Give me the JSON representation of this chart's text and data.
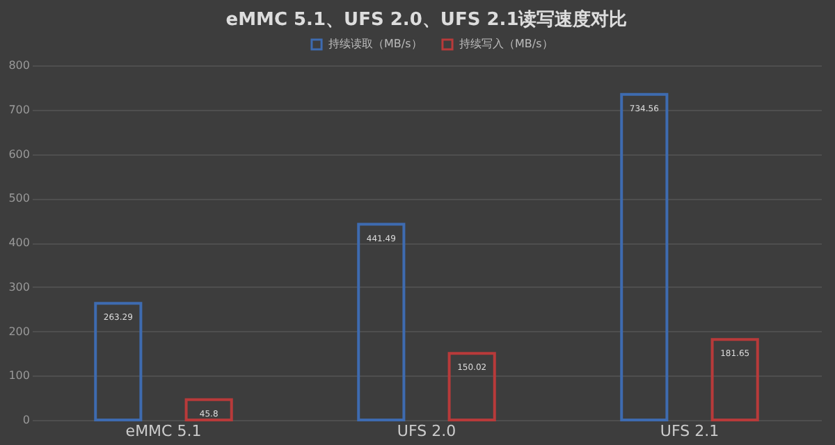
{
  "chart_data": {
    "type": "bar",
    "title": "eMMC 5.1、UFS 2.0、UFS 2.1读写速度对比",
    "categories": [
      "eMMC 5.1",
      "UFS 2.0",
      "UFS 2.1"
    ],
    "series": [
      {
        "name": "持续读取（MB/s）",
        "color": "#3e6bb0",
        "values": [
          263.29,
          441.49,
          734.56
        ]
      },
      {
        "name": "持续写入（MB/s）",
        "color": "#b83a3a",
        "values": [
          45.8,
          150.02,
          181.65
        ]
      }
    ],
    "ylim": [
      0,
      800
    ],
    "yticks": [
      0,
      100,
      200,
      300,
      400,
      500,
      600,
      700,
      800
    ],
    "grid": "y",
    "legend": "top",
    "data_labels": true
  }
}
